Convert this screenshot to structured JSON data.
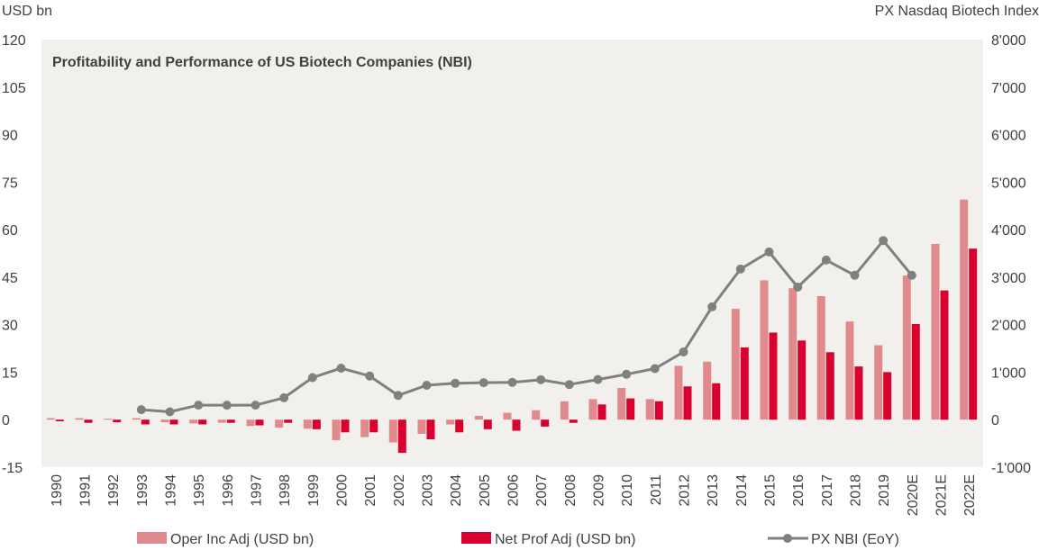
{
  "chart_data": {
    "type": "bar",
    "title": "Profitability and Performance of US Biotech Companies (NBI)",
    "ylabel_left": "USD bn",
    "ylabel_right": "PX Nasdaq Biotech Index",
    "ylim_left": [
      -15,
      120
    ],
    "ylim_right": [
      -1000,
      8000
    ],
    "yticks_left": [
      "120",
      "105",
      "90",
      "75",
      "60",
      "45",
      "30",
      "15",
      "0",
      "-15"
    ],
    "yticks_right": [
      "8'000",
      "7'000",
      "6'000",
      "5'000",
      "4'000",
      "3'000",
      "2'000",
      "1'000",
      "0",
      "-1'000"
    ],
    "categories": [
      "1990",
      "1991",
      "1992",
      "1993",
      "1994",
      "1995",
      "1996",
      "1997",
      "1998",
      "1999",
      "2000",
      "2001",
      "2002",
      "2003",
      "2004",
      "2005",
      "2006",
      "2007",
      "2008",
      "2009",
      "2010",
      "2011",
      "2012",
      "2013",
      "2014",
      "2015",
      "2016",
      "2017",
      "2018",
      "2019",
      "2020E",
      "2021E",
      "2022E"
    ],
    "series": [
      {
        "name": "Oper Inc Adj (USD bn)",
        "type": "bar",
        "axis": "left",
        "color": "#e08a8d",
        "values": [
          0.5,
          0.5,
          0.3,
          0.5,
          -0.8,
          -1.2,
          -1.0,
          -2.0,
          -2.5,
          -2.8,
          -6.5,
          -5.5,
          -7.2,
          -4.5,
          -1.5,
          1.2,
          2.2,
          3.0,
          5.8,
          6.5,
          10.0,
          6.5,
          17.0,
          18.3,
          35.0,
          44.0,
          41.5,
          39.0,
          31.0,
          23.5,
          45.5,
          55.5,
          69.5
        ]
      },
      {
        "name": "Net Prof Adj (USD bn)",
        "type": "bar",
        "axis": "left",
        "color": "#d9002f",
        "values": [
          -0.5,
          -1.0,
          -0.8,
          -1.5,
          -1.5,
          -1.5,
          -1.0,
          -1.8,
          -1.0,
          -3.0,
          -4.0,
          -4.0,
          -10.5,
          -6.2,
          -4.0,
          -3.0,
          -3.5,
          -2.2,
          -1.0,
          4.8,
          6.7,
          5.8,
          10.5,
          11.5,
          22.8,
          27.5,
          25.0,
          21.3,
          16.8,
          15.0,
          30.2,
          40.8,
          54.0
        ]
      },
      {
        "name": "PX NBI (EoY)",
        "type": "line",
        "axis": "right",
        "color": "#808080",
        "values": [
          null,
          null,
          null,
          210,
          165,
          305,
          305,
          305,
          460,
          885,
          1085,
          920,
          510,
          725,
          765,
          780,
          785,
          840,
          740,
          845,
          955,
          1075,
          1425,
          2375,
          3170,
          3530,
          2790,
          3360,
          3040,
          3770,
          3040,
          null,
          null
        ]
      }
    ],
    "legend": [
      "Oper Inc Adj (USD bn)",
      "Net Prof Adj (USD bn)",
      "PX NBI (EoY)"
    ],
    "legend_position": "bottom",
    "plot_background": "#f2f0ec",
    "grid": false
  }
}
